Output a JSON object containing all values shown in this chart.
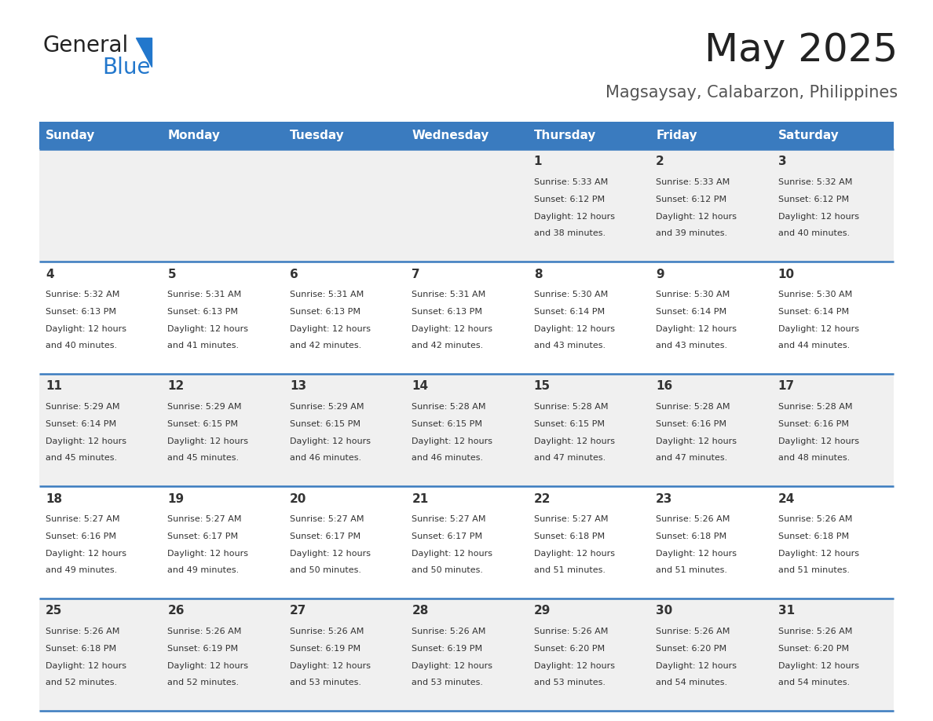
{
  "title": "May 2025",
  "subtitle": "Magsaysay, Calabarzon, Philippines",
  "header_bg": "#3a7bbf",
  "header_text": "#ffffff",
  "cell_bg_odd": "#f0f0f0",
  "cell_bg_even": "#ffffff",
  "border_color": "#3a7bbf",
  "text_color": "#333333",
  "days_of_week": [
    "Sunday",
    "Monday",
    "Tuesday",
    "Wednesday",
    "Thursday",
    "Friday",
    "Saturday"
  ],
  "calendar": [
    [
      {
        "day": "",
        "sunrise": "",
        "sunset": "",
        "daylight": ""
      },
      {
        "day": "",
        "sunrise": "",
        "sunset": "",
        "daylight": ""
      },
      {
        "day": "",
        "sunrise": "",
        "sunset": "",
        "daylight": ""
      },
      {
        "day": "",
        "sunrise": "",
        "sunset": "",
        "daylight": ""
      },
      {
        "day": "1",
        "sunrise": "5:33 AM",
        "sunset": "6:12 PM",
        "daylight": "12 hours and 38 minutes."
      },
      {
        "day": "2",
        "sunrise": "5:33 AM",
        "sunset": "6:12 PM",
        "daylight": "12 hours and 39 minutes."
      },
      {
        "day": "3",
        "sunrise": "5:32 AM",
        "sunset": "6:12 PM",
        "daylight": "12 hours and 40 minutes."
      }
    ],
    [
      {
        "day": "4",
        "sunrise": "5:32 AM",
        "sunset": "6:13 PM",
        "daylight": "12 hours and 40 minutes."
      },
      {
        "day": "5",
        "sunrise": "5:31 AM",
        "sunset": "6:13 PM",
        "daylight": "12 hours and 41 minutes."
      },
      {
        "day": "6",
        "sunrise": "5:31 AM",
        "sunset": "6:13 PM",
        "daylight": "12 hours and 42 minutes."
      },
      {
        "day": "7",
        "sunrise": "5:31 AM",
        "sunset": "6:13 PM",
        "daylight": "12 hours and 42 minutes."
      },
      {
        "day": "8",
        "sunrise": "5:30 AM",
        "sunset": "6:14 PM",
        "daylight": "12 hours and 43 minutes."
      },
      {
        "day": "9",
        "sunrise": "5:30 AM",
        "sunset": "6:14 PM",
        "daylight": "12 hours and 43 minutes."
      },
      {
        "day": "10",
        "sunrise": "5:30 AM",
        "sunset": "6:14 PM",
        "daylight": "12 hours and 44 minutes."
      }
    ],
    [
      {
        "day": "11",
        "sunrise": "5:29 AM",
        "sunset": "6:14 PM",
        "daylight": "12 hours and 45 minutes."
      },
      {
        "day": "12",
        "sunrise": "5:29 AM",
        "sunset": "6:15 PM",
        "daylight": "12 hours and 45 minutes."
      },
      {
        "day": "13",
        "sunrise": "5:29 AM",
        "sunset": "6:15 PM",
        "daylight": "12 hours and 46 minutes."
      },
      {
        "day": "14",
        "sunrise": "5:28 AM",
        "sunset": "6:15 PM",
        "daylight": "12 hours and 46 minutes."
      },
      {
        "day": "15",
        "sunrise": "5:28 AM",
        "sunset": "6:15 PM",
        "daylight": "12 hours and 47 minutes."
      },
      {
        "day": "16",
        "sunrise": "5:28 AM",
        "sunset": "6:16 PM",
        "daylight": "12 hours and 47 minutes."
      },
      {
        "day": "17",
        "sunrise": "5:28 AM",
        "sunset": "6:16 PM",
        "daylight": "12 hours and 48 minutes."
      }
    ],
    [
      {
        "day": "18",
        "sunrise": "5:27 AM",
        "sunset": "6:16 PM",
        "daylight": "12 hours and 49 minutes."
      },
      {
        "day": "19",
        "sunrise": "5:27 AM",
        "sunset": "6:17 PM",
        "daylight": "12 hours and 49 minutes."
      },
      {
        "day": "20",
        "sunrise": "5:27 AM",
        "sunset": "6:17 PM",
        "daylight": "12 hours and 50 minutes."
      },
      {
        "day": "21",
        "sunrise": "5:27 AM",
        "sunset": "6:17 PM",
        "daylight": "12 hours and 50 minutes."
      },
      {
        "day": "22",
        "sunrise": "5:27 AM",
        "sunset": "6:18 PM",
        "daylight": "12 hours and 51 minutes."
      },
      {
        "day": "23",
        "sunrise": "5:26 AM",
        "sunset": "6:18 PM",
        "daylight": "12 hours and 51 minutes."
      },
      {
        "day": "24",
        "sunrise": "5:26 AM",
        "sunset": "6:18 PM",
        "daylight": "12 hours and 51 minutes."
      }
    ],
    [
      {
        "day": "25",
        "sunrise": "5:26 AM",
        "sunset": "6:18 PM",
        "daylight": "12 hours and 52 minutes."
      },
      {
        "day": "26",
        "sunrise": "5:26 AM",
        "sunset": "6:19 PM",
        "daylight": "12 hours and 52 minutes."
      },
      {
        "day": "27",
        "sunrise": "5:26 AM",
        "sunset": "6:19 PM",
        "daylight": "12 hours and 53 minutes."
      },
      {
        "day": "28",
        "sunrise": "5:26 AM",
        "sunset": "6:19 PM",
        "daylight": "12 hours and 53 minutes."
      },
      {
        "day": "29",
        "sunrise": "5:26 AM",
        "sunset": "6:20 PM",
        "daylight": "12 hours and 53 minutes."
      },
      {
        "day": "30",
        "sunrise": "5:26 AM",
        "sunset": "6:20 PM",
        "daylight": "12 hours and 54 minutes."
      },
      {
        "day": "31",
        "sunrise": "5:26 AM",
        "sunset": "6:20 PM",
        "daylight": "12 hours and 54 minutes."
      }
    ]
  ],
  "logo_general_color": "#222222",
  "logo_blue_color": "#2277cc",
  "logo_triangle_color": "#2277cc",
  "title_color": "#222222",
  "subtitle_color": "#555555",
  "title_fontsize": 36,
  "subtitle_fontsize": 15,
  "header_fontsize": 11,
  "day_num_fontsize": 11,
  "cell_text_fontsize": 8
}
